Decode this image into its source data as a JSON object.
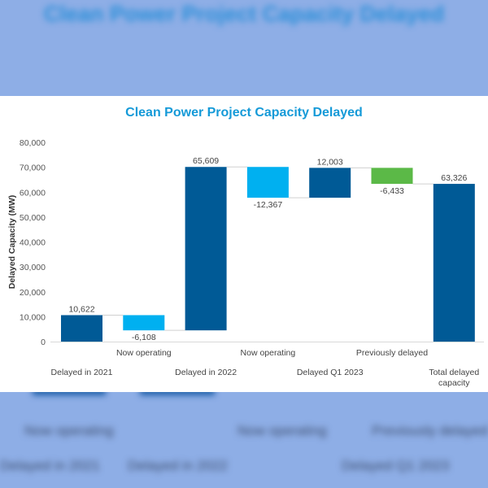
{
  "colors": {
    "total": "#005a96",
    "decrease": "#00b0f0",
    "increase": "#005a96",
    "final_decrease": "#5bb947",
    "title": "#159ad8"
  },
  "chart_data": {
    "type": "waterfall",
    "title": "Clean Power Project Capacity Delayed",
    "xlabel": "",
    "ylabel": "Delayed Capacity (MW)",
    "ylim": [
      0,
      80000
    ],
    "yticks": [
      0,
      10000,
      20000,
      30000,
      40000,
      50000,
      60000,
      70000,
      80000
    ],
    "ytick_labels": [
      "0",
      "10,000",
      "20,000",
      "30,000",
      "40,000",
      "50,000",
      "60,000",
      "70,000",
      "80,000"
    ],
    "grid": false,
    "legend": "none",
    "categories": [
      "Delayed in 2021",
      "Now operating",
      "Delayed in 2022",
      "Now operating",
      "Delayed Q1 2023",
      "Previously delayed",
      "Total delayed capacity"
    ],
    "values": [
      10622,
      -6108,
      65609,
      -12367,
      12003,
      -6433,
      63326
    ],
    "value_labels": [
      "10,622",
      "-6,108",
      "65,609",
      "-12,367",
      "12,003",
      "-6,433",
      "63,326"
    ],
    "kinds": [
      "increase",
      "decrease",
      "increase",
      "decrease",
      "increase",
      "final_decrease",
      "total"
    ]
  }
}
